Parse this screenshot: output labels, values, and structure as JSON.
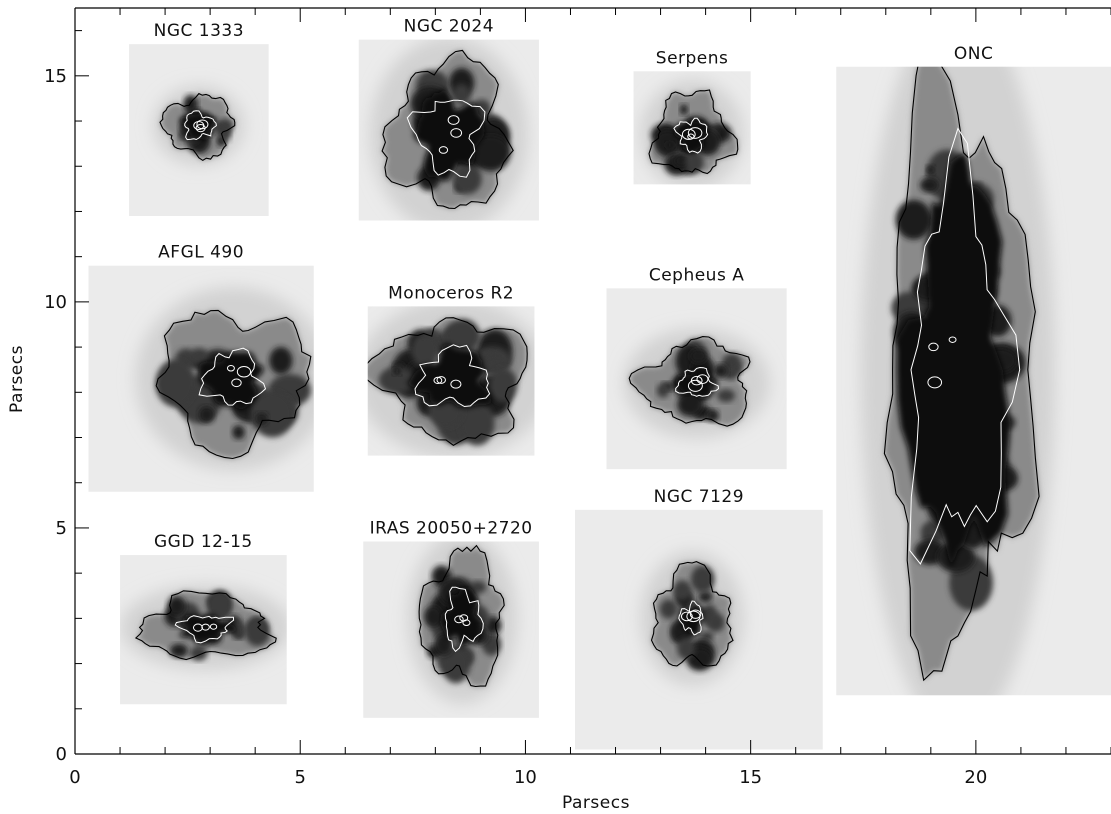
{
  "chart_data": {
    "type": "image-montage",
    "xlabel": "Parsecs",
    "ylabel": "Parsecs",
    "xlim": [
      0,
      23
    ],
    "ylim": [
      0,
      16.5
    ],
    "x_ticks": [
      0,
      5,
      10,
      15,
      20
    ],
    "y_ticks": [
      0,
      5,
      10,
      15
    ],
    "x_minor_step": 1,
    "y_minor_step": 1,
    "colormap": "inverted-grayscale",
    "panels": [
      {
        "name": "NGC 1333",
        "x": [
          1.2,
          4.3
        ],
        "y": [
          11.9,
          15.7
        ],
        "cx": 2.75,
        "cy": 13.9,
        "rx": 0.75,
        "ry": 0.65,
        "core": 0.45,
        "lobes": 5,
        "seed": 1
      },
      {
        "name": "NGC 2024",
        "x": [
          6.3,
          10.3
        ],
        "y": [
          11.8,
          15.8
        ],
        "cx": 8.3,
        "cy": 13.7,
        "rx": 1.3,
        "ry": 1.6,
        "core": 0.55,
        "lobes": 7,
        "seed": 2
      },
      {
        "name": "Serpens",
        "x": [
          12.4,
          15.0
        ],
        "y": [
          12.6,
          15.1
        ],
        "cx": 13.7,
        "cy": 13.7,
        "rx": 0.85,
        "ry": 0.9,
        "core": 0.4,
        "lobes": 6,
        "seed": 3
      },
      {
        "name": "ONC",
        "x": [
          16.9,
          23.0
        ],
        "y": [
          1.3,
          15.2
        ],
        "cx": 19.6,
        "cy": 8.5,
        "rx": 1.6,
        "ry": 6.0,
        "core": 0.7,
        "lobes": 14,
        "seed": 4
      },
      {
        "name": "AFGL 490",
        "x": [
          0.3,
          5.3
        ],
        "y": [
          5.8,
          10.8
        ],
        "cx": 3.5,
        "cy": 8.3,
        "rx": 1.6,
        "ry": 1.5,
        "core": 0.4,
        "lobes": 8,
        "seed": 5
      },
      {
        "name": "Monoceros R2",
        "x": [
          6.5,
          10.2
        ],
        "y": [
          6.6,
          9.9
        ],
        "cx": 8.4,
        "cy": 8.3,
        "rx": 1.6,
        "ry": 1.3,
        "core": 0.5,
        "lobes": 9,
        "seed": 6
      },
      {
        "name": "Cepheus A",
        "x": [
          11.8,
          15.8
        ],
        "y": [
          6.3,
          10.3
        ],
        "cx": 13.8,
        "cy": 8.2,
        "rx": 1.2,
        "ry": 0.9,
        "core": 0.35,
        "lobes": 6,
        "seed": 7
      },
      {
        "name": "GGD 12-15",
        "x": [
          1.0,
          4.7
        ],
        "y": [
          1.1,
          4.4
        ],
        "cx": 2.9,
        "cy": 2.8,
        "rx": 1.4,
        "ry": 0.7,
        "core": 0.4,
        "lobes": 6,
        "seed": 8
      },
      {
        "name": "IRAS 20050+2720",
        "x": [
          6.4,
          10.3
        ],
        "y": [
          0.8,
          4.7
        ],
        "cx": 8.6,
        "cy": 3.0,
        "rx": 0.9,
        "ry": 1.4,
        "core": 0.45,
        "lobes": 7,
        "seed": 9
      },
      {
        "name": "NGC 7129",
        "x": [
          11.1,
          16.6
        ],
        "y": [
          0.1,
          5.4
        ],
        "cx": 13.7,
        "cy": 3.0,
        "rx": 0.85,
        "ry": 1.1,
        "core": 0.3,
        "lobes": 5,
        "seed": 10
      }
    ]
  }
}
